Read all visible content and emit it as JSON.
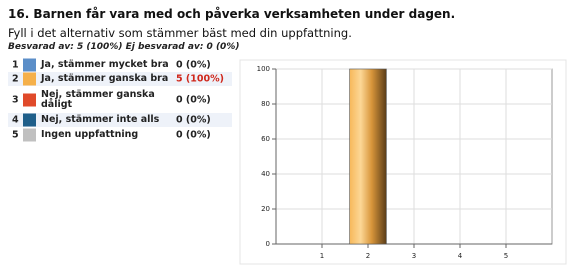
{
  "header": {
    "title": "16. Barnen får vara med och påverka verksamheten under dagen.",
    "subtitle": "Fyll i det alternativ som stämmer bäst med din uppfattning.",
    "answered": "Besvarad av: 5 (100%) Ej besvarad av: 0 (0%)"
  },
  "table": {
    "rows": [
      [
        "1",
        "Ja, stämmer mycket bra",
        "0 (0%)"
      ],
      [
        "2",
        "Ja, stämmer ganska bra",
        "5 (100%)"
      ],
      [
        "3",
        "Nej, stämmer ganska dåligt",
        "0 (0%)"
      ],
      [
        "4",
        "Nej, stämmer inte alls",
        "0 (0%)"
      ],
      [
        "5",
        "Ingen uppfattning",
        "0 (0%)"
      ]
    ]
  },
  "chart_data": {
    "type": "bar",
    "x": [
      1,
      2,
      3,
      4,
      5
    ],
    "values": [
      0,
      100,
      0,
      0,
      0
    ],
    "colors": [
      "#5b8ec8",
      "#f5b04a",
      "#e04a2a",
      "#1f5f8a",
      "#c0c0c0"
    ],
    "xlim": [
      0,
      6
    ],
    "xticks": [
      1,
      2,
      3,
      4,
      5
    ],
    "ylim": [
      0,
      100
    ],
    "yticks": [
      0,
      20,
      40,
      60,
      80,
      100
    ],
    "grid": true
  }
}
